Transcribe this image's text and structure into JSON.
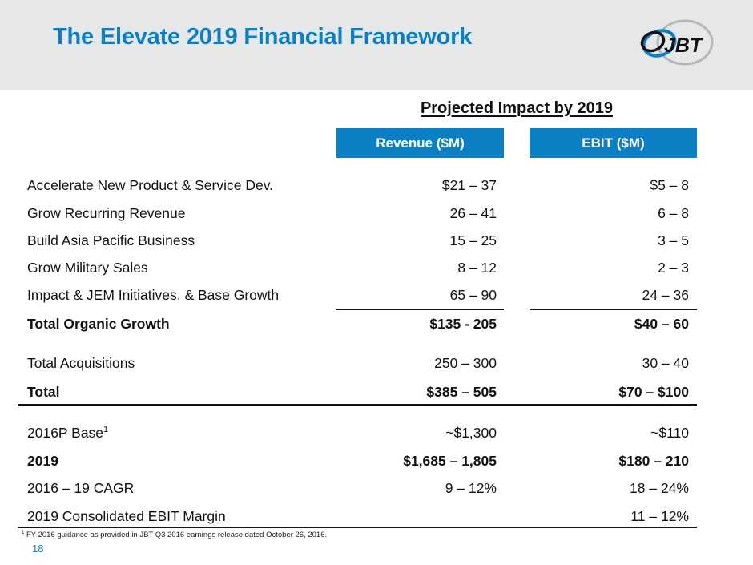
{
  "slide": {
    "title": "The Elevate 2019 Financial Framework",
    "logo_text": "JBT",
    "page_number": "18",
    "colors": {
      "accent_blue": "#0a7fc4",
      "header_band": "#e6e7e8"
    }
  },
  "table": {
    "section_title": "Projected Impact by 2019",
    "columns": {
      "revenue": "Revenue ($M)",
      "ebit": "EBIT ($M)"
    },
    "rows": [
      {
        "label": "Accelerate New Product & Service Dev.",
        "revenue": "$21 – 37",
        "ebit": "$5 – 8",
        "bold": false
      },
      {
        "label": "Grow Recurring Revenue",
        "revenue": "26 – 41",
        "ebit": "6 – 8",
        "bold": false
      },
      {
        "label": "Build Asia Pacific Business",
        "revenue": "15 – 25",
        "ebit": "3 – 5",
        "bold": false
      },
      {
        "label": "Grow Military Sales",
        "revenue": "8 – 12",
        "ebit": "2 – 3",
        "bold": false
      },
      {
        "label": "Impact & JEM Initiatives, & Base Growth",
        "revenue": "65 – 90",
        "ebit": "24 – 36",
        "bold": false
      },
      {
        "label": "Total Organic Growth",
        "revenue": "$135 - 205",
        "ebit": "$40 – 60",
        "bold": true
      },
      {
        "label": "Total Acquisitions",
        "revenue": "250 – 300",
        "ebit": "30 – 40",
        "bold": false
      },
      {
        "label": "Total",
        "revenue": "$385 – 505",
        "ebit": "$70 – $100",
        "bold": true
      },
      {
        "label": "2016P Base",
        "label_superscript": "1",
        "revenue": "~$1,300",
        "ebit": "~$110",
        "bold": false
      },
      {
        "label": "2019",
        "revenue": "$1,685 – 1,805",
        "ebit": "$180 – 210",
        "bold": true
      },
      {
        "label": "2016 – 19 CAGR",
        "revenue": "9 – 12%",
        "ebit": "18 – 24%",
        "bold": false
      },
      {
        "label": "2019 Consolidated EBIT Margin",
        "revenue": "",
        "ebit": "11 – 12%",
        "bold": false
      }
    ]
  },
  "footnote": {
    "marker": "1",
    "text": " FY 2016 guidance as provided in JBT Q3 2016 earnings release dated October 26, 2016."
  }
}
